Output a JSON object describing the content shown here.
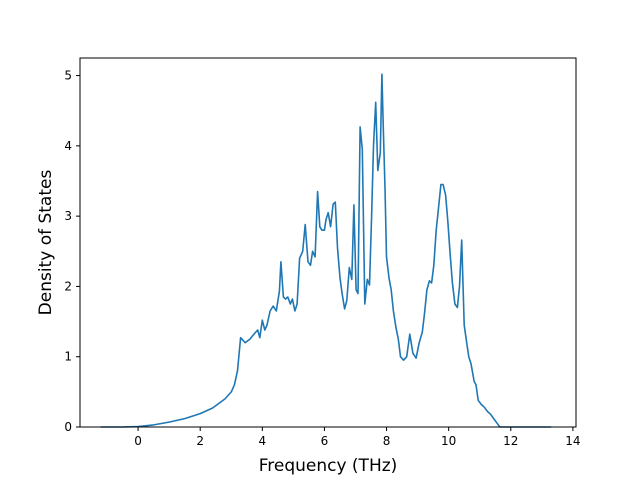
{
  "chart_data": {
    "type": "line",
    "title": "",
    "xlabel": "Frequency (THz)",
    "ylabel": "Density of States",
    "xlim": [
      -1.87,
      14.1
    ],
    "ylim": [
      0,
      5.25
    ],
    "xticks": [
      0,
      2,
      4,
      6,
      8,
      10,
      12,
      14
    ],
    "yticks": [
      0,
      1,
      2,
      3,
      4,
      5
    ],
    "grid": false,
    "legend": "none",
    "series": [
      {
        "color": "#1f77b4",
        "x": [
          -1.2,
          -0.5,
          0.0,
          0.5,
          1.0,
          1.5,
          2.0,
          2.4,
          2.8,
          3.0,
          3.1,
          3.2,
          3.3,
          3.45,
          3.6,
          3.75,
          3.85,
          3.92,
          4.0,
          4.08,
          4.15,
          4.25,
          4.35,
          4.45,
          4.55,
          4.6,
          4.68,
          4.75,
          4.82,
          4.9,
          4.97,
          5.05,
          5.12,
          5.2,
          5.3,
          5.38,
          5.47,
          5.55,
          5.62,
          5.7,
          5.78,
          5.85,
          5.92,
          6.0,
          6.05,
          6.12,
          6.2,
          6.28,
          6.35,
          6.42,
          6.5,
          6.57,
          6.65,
          6.72,
          6.8,
          6.88,
          6.95,
          7.02,
          7.08,
          7.15,
          7.22,
          7.3,
          7.38,
          7.45,
          7.52,
          7.58,
          7.65,
          7.72,
          7.8,
          7.85,
          7.9,
          7.95,
          8.0,
          8.08,
          8.15,
          8.22,
          8.3,
          8.38,
          8.45,
          8.55,
          8.65,
          8.75,
          8.85,
          8.95,
          9.05,
          9.15,
          9.22,
          9.3,
          9.38,
          9.45,
          9.52,
          9.6,
          9.67,
          9.75,
          9.82,
          9.9,
          9.97,
          10.05,
          10.12,
          10.2,
          10.28,
          10.35,
          10.42,
          10.5,
          10.58,
          10.65,
          10.72,
          10.78,
          10.82,
          10.88,
          10.95,
          11.05,
          11.15,
          11.25,
          11.35,
          11.45,
          11.55,
          11.65,
          11.75,
          11.85,
          11.95,
          12.05,
          12.15,
          12.3,
          12.6,
          13.0,
          13.3
        ],
        "y": [
          0,
          0,
          0.005,
          0.03,
          0.07,
          0.12,
          0.19,
          0.27,
          0.4,
          0.5,
          0.6,
          0.8,
          1.27,
          1.2,
          1.25,
          1.33,
          1.38,
          1.27,
          1.52,
          1.38,
          1.45,
          1.65,
          1.72,
          1.65,
          1.93,
          2.35,
          1.85,
          1.82,
          1.85,
          1.75,
          1.82,
          1.65,
          1.75,
          2.4,
          2.5,
          2.88,
          2.35,
          2.3,
          2.5,
          2.42,
          3.35,
          2.85,
          2.8,
          2.8,
          2.95,
          3.05,
          2.85,
          3.17,
          3.2,
          2.55,
          2.12,
          1.9,
          1.68,
          1.8,
          2.27,
          2.1,
          3.16,
          1.95,
          1.9,
          4.27,
          3.95,
          1.75,
          2.1,
          2.02,
          3.0,
          4.0,
          4.62,
          3.65,
          3.9,
          5.02,
          4.2,
          3.4,
          2.42,
          2.12,
          1.95,
          1.65,
          1.42,
          1.25,
          1.0,
          0.95,
          1.0,
          1.32,
          1.05,
          0.98,
          1.2,
          1.35,
          1.6,
          1.95,
          2.08,
          2.05,
          2.3,
          2.8,
          3.1,
          3.45,
          3.45,
          3.3,
          2.95,
          2.45,
          2.05,
          1.75,
          1.7,
          2.0,
          2.66,
          1.45,
          1.2,
          1.0,
          0.9,
          0.75,
          0.65,
          0.6,
          0.38,
          0.32,
          0.28,
          0.22,
          0.18,
          0.12,
          0.06,
          0.0,
          0.0,
          0.0,
          0.0,
          0.0,
          0.0,
          0.0,
          0.0,
          0.0,
          0.0
        ]
      }
    ]
  }
}
